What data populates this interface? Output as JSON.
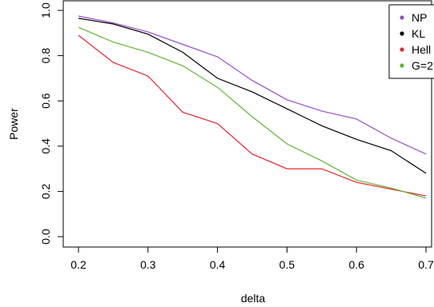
{
  "chart_data": {
    "type": "line",
    "title": "",
    "xlabel": "delta",
    "ylabel": "Power",
    "xlim": [
      0.2,
      0.7
    ],
    "ylim": [
      0.0,
      1.0
    ],
    "x_ticks": [
      "0.2",
      "0.3",
      "0.4",
      "0.5",
      "0.6",
      "0.7"
    ],
    "y_ticks": [
      "0.0",
      "0.2",
      "0.4",
      "0.6",
      "0.8",
      "1.0"
    ],
    "grid": false,
    "legend_position": "top-right",
    "x": [
      0.2,
      0.25,
      0.3,
      0.35,
      0.4,
      0.45,
      0.5,
      0.55,
      0.6,
      0.65,
      0.7
    ],
    "series": [
      {
        "name": "NP",
        "color": "#9b4dca",
        "values": [
          0.975,
          0.945,
          0.905,
          0.85,
          0.795,
          0.69,
          0.605,
          0.555,
          0.52,
          0.435,
          0.365
        ]
      },
      {
        "name": "KL",
        "color": "#000000",
        "values": [
          0.965,
          0.94,
          0.895,
          0.815,
          0.7,
          0.64,
          0.565,
          0.49,
          0.43,
          0.38,
          0.28
        ]
      },
      {
        "name": "Hell",
        "color": "#e8262c",
        "values": [
          0.89,
          0.77,
          0.71,
          0.55,
          0.5,
          0.365,
          0.3,
          0.3,
          0.24,
          0.21,
          0.18
        ]
      },
      {
        "name": "G=2",
        "color": "#5fb832",
        "values": [
          0.925,
          0.86,
          0.815,
          0.755,
          0.66,
          0.53,
          0.41,
          0.335,
          0.25,
          0.215,
          0.17
        ]
      }
    ]
  }
}
